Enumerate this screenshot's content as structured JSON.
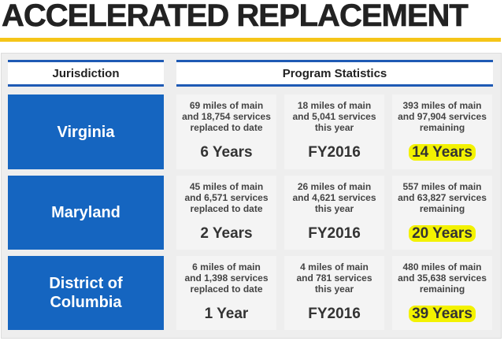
{
  "title": "ACCELERATED REPLACEMENT",
  "headers": {
    "jurisdiction": "Jurisdiction",
    "program": "Program Statistics"
  },
  "rows": [
    {
      "name": "Virginia",
      "cells": [
        {
          "desc": "69 miles of main\nand 18,754 services\nreplaced to date",
          "big": "6 Years"
        },
        {
          "desc": "18 miles of main\nand 5,041 services\nthis year",
          "big": "FY2016"
        },
        {
          "desc": "393 miles of main\nand 97,904 services\nremaining",
          "big": "14 Years"
        }
      ]
    },
    {
      "name": "Maryland",
      "cells": [
        {
          "desc": "45 miles of main\nand 6,571 services\nreplaced to date",
          "big": "2 Years"
        },
        {
          "desc": "26 miles of main\nand 4,621 services\nthis year",
          "big": "FY2016"
        },
        {
          "desc": "557 miles of main\nand 63,827 services\nremaining",
          "big": "20 Years"
        }
      ]
    },
    {
      "name": "District of\nColumbia",
      "cells": [
        {
          "desc": "6 miles of main\nand 1,398 services\nreplaced to date",
          "big": "1 Year"
        },
        {
          "desc": "4 miles of main\nand 781 services\nthis year",
          "big": "FY2016"
        },
        {
          "desc": "480 miles of main\nand 35,638 services\nremaining",
          "big": "39 Years"
        }
      ]
    }
  ],
  "colors": {
    "accent_bar": "#f5c518",
    "jurisdiction_fill": "#1565c0",
    "highlight": "#f3f200"
  }
}
